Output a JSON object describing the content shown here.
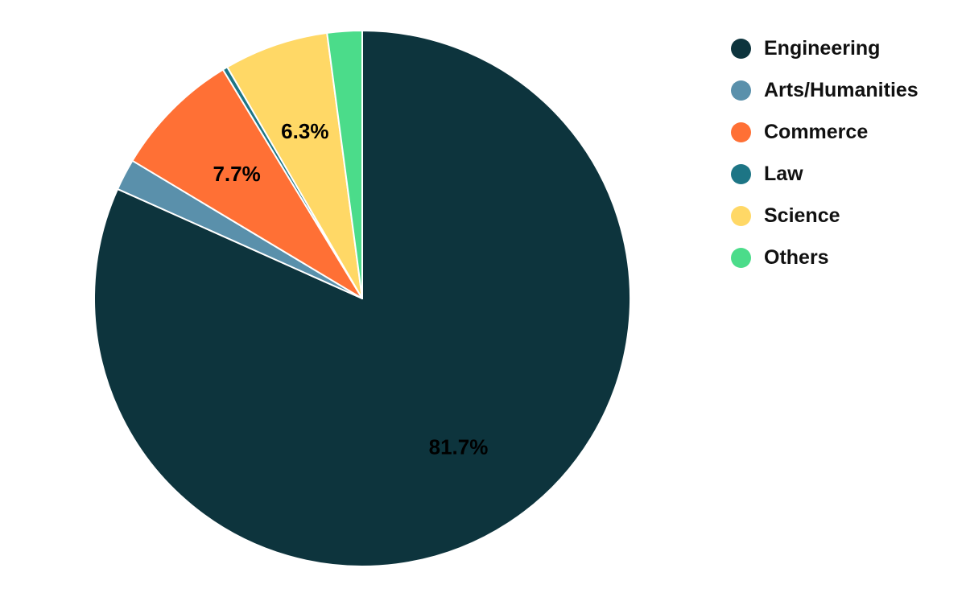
{
  "chart_data": {
    "type": "pie",
    "title": "",
    "legend_position": "top-right",
    "start_angle_deg": 0,
    "direction": "clockwise",
    "slices": [
      {
        "name": "Engineering",
        "value": 81.7,
        "color": "#0d343d",
        "label": "81.7%",
        "label_color": "#000000"
      },
      {
        "name": "Arts/Humanities",
        "value": 1.9,
        "color": "#5a90ab",
        "label": "",
        "label_color": "#000000"
      },
      {
        "name": "Commerce",
        "value": 7.7,
        "color": "#ff7035",
        "label": "7.7%",
        "label_color": "#000000"
      },
      {
        "name": "Law",
        "value": 0.3,
        "color": "#1d7585",
        "label": "",
        "label_color": "#000000"
      },
      {
        "name": "Science",
        "value": 6.3,
        "color": "#ffd866",
        "label": "6.3%",
        "label_color": "#000000"
      },
      {
        "name": "Others",
        "value": 2.1,
        "color": "#4bdc8a",
        "label": "",
        "label_color": "#000000"
      }
    ]
  }
}
